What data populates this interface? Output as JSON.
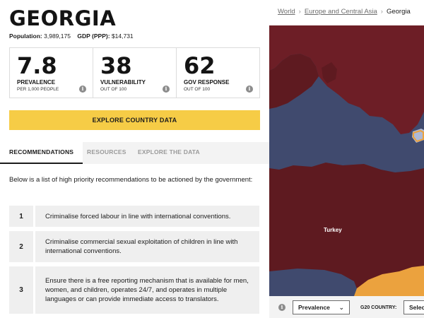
{
  "country": {
    "name": "GEORGIA",
    "population_label": "Population:",
    "population_value": "3,989,175",
    "gdp_label": "GDP (PPP):",
    "gdp_value": "$14,731"
  },
  "metrics": [
    {
      "value": "7.8",
      "label": "PREVALENCE",
      "sub": "PER 1,000 PEOPLE",
      "icon": "info-icon"
    },
    {
      "value": "38",
      "label": "VULNERABILITY",
      "sub": "OUT OF 100",
      "icon": "info-icon"
    },
    {
      "value": "62",
      "label": "GOV RESPONSE",
      "sub": "OUT OF 100",
      "icon": "info-icon"
    }
  ],
  "explore_button_label": "EXPLORE COUNTRY DATA",
  "tabs": [
    {
      "label": "RECOMMENDATIONS",
      "active": true
    },
    {
      "label": "RESOURCES",
      "active": false
    },
    {
      "label": "EXPLORE THE DATA",
      "active": false
    }
  ],
  "intro": "Below is a list of high priority recommendations to be actioned by the government:",
  "recommendations": [
    {
      "number": "1",
      "text": "Criminalise forced labour in line with international conventions."
    },
    {
      "number": "2",
      "text": "Criminalise commercial sexual exploitation of children in line with international conventions."
    },
    {
      "number": "3",
      "text": "Ensure there is a free reporting mechanism that is available for men, women, and children, operates 24/7, and operates in multiple languages or can provide immediate access to translators."
    }
  ],
  "breadcrumb": {
    "world": "World",
    "region": "Europe and Central Asia",
    "current": "Georgia",
    "separator": "›"
  },
  "map": {
    "label_turkey": "Turkey",
    "colors": {
      "sea": "#404a6e",
      "dark_red": "#5e1a20",
      "mid_red": "#6d1e26",
      "highlight_orange": "#eba23e",
      "georgia_blue": "#aeb9d6"
    }
  },
  "footer": {
    "info_icon": "info-icon",
    "metric_select_value": "Prevalence",
    "g20_label": "G20 COUNTRY:",
    "g20_select_value": "Selec"
  },
  "colors": {
    "accent_yellow": "#f6cc46",
    "tab_bg": "#f3f3f3",
    "rec_bg": "#efefef"
  }
}
